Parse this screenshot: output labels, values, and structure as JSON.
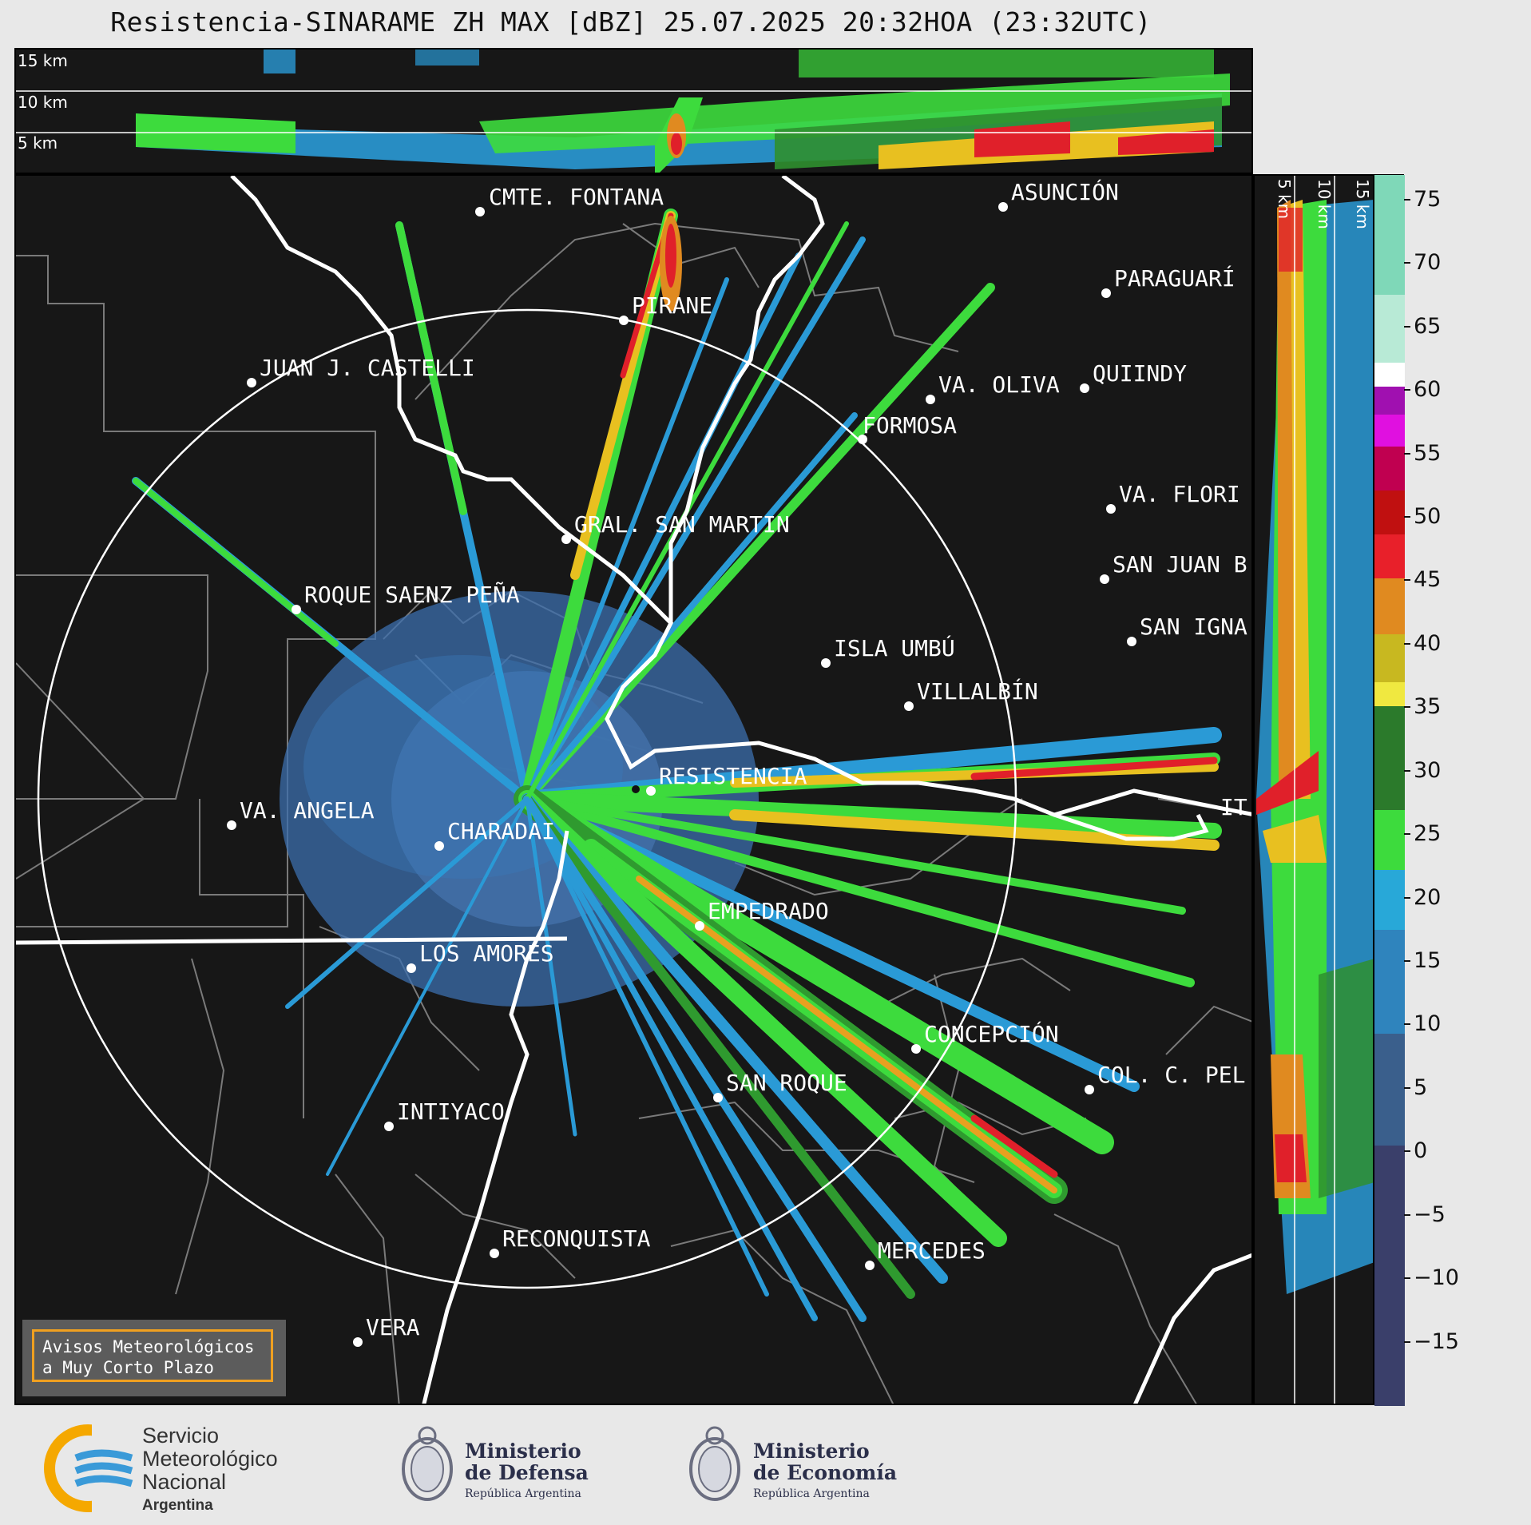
{
  "title": "Resistencia-SINARAME ZH MAX [dBZ] 25.07.2025 20:32HOA (23:32UTC)",
  "top_panel": {
    "height_labels": [
      "15 km",
      "10 km",
      "5 km"
    ]
  },
  "side_panel": {
    "height_labels": [
      "5 km",
      "10 km",
      "15 km"
    ]
  },
  "cities": [
    {
      "name": "CMTE. FONTANA"
    },
    {
      "name": "ASUNCIÓN"
    },
    {
      "name": "PARAGUARÍ"
    },
    {
      "name": "PIRANE"
    },
    {
      "name": "JUAN J. CASTELLI"
    },
    {
      "name": "VA. OLIVA"
    },
    {
      "name": "QUIINDY"
    },
    {
      "name": "FORMOSA"
    },
    {
      "name": "VA. FLORI"
    },
    {
      "name": "GRAL. SAN MARTIN"
    },
    {
      "name": "SAN JUAN B"
    },
    {
      "name": "ROQUE SAENZ PEÑA"
    },
    {
      "name": "SAN IGNA"
    },
    {
      "name": "ISLA UMBÚ"
    },
    {
      "name": "VILLALBÍN"
    },
    {
      "name": "RESISTENCIA"
    },
    {
      "name": "VA. ANGELA"
    },
    {
      "name": "CHARADAI"
    },
    {
      "name": "IT"
    },
    {
      "name": "EMPEDRADO"
    },
    {
      "name": "LOS AMORES"
    },
    {
      "name": "CONCEPCIÓN"
    },
    {
      "name": "SAN ROQUE"
    },
    {
      "name": "COL. C. PEL"
    },
    {
      "name": "INTIYACO"
    },
    {
      "name": "RECONQUISTA"
    },
    {
      "name": "MERCEDES"
    },
    {
      "name": "VERA"
    }
  ],
  "colorbar": {
    "unit": "dBZ",
    "ticks": [
      "75",
      "70",
      "65",
      "60",
      "55",
      "50",
      "45",
      "40",
      "35",
      "30",
      "25",
      "20",
      "15",
      "10",
      "5",
      "0",
      "−5",
      "−10",
      "−15"
    ],
    "min": -20,
    "max": 77
  },
  "warning": {
    "line1": "Avisos Meteorológicos",
    "line2": "a Muy Corto Plazo"
  },
  "footer": {
    "smn_line1": "Servicio",
    "smn_line2": "Meteorológico",
    "smn_line3": "Nacional",
    "smn_line4": "Argentina",
    "defensa_line1": "Ministerio",
    "defensa_line2": "de Defensa",
    "defensa_line3": "República Argentina",
    "economia_line1": "Ministerio",
    "economia_line2": "de Economía",
    "economia_line3": "República Argentina"
  },
  "colors": {
    "background": "#171717",
    "border_white": "#ffffff",
    "province_gray": "#7a7a7a",
    "warn_orange": "#f0a020"
  }
}
